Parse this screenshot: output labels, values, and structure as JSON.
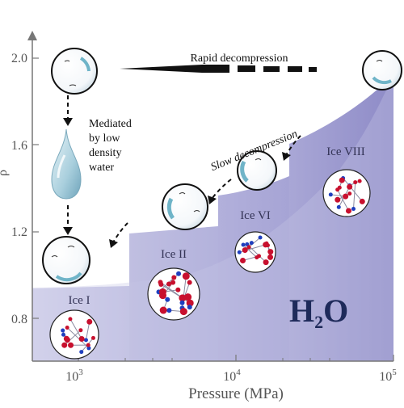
{
  "chart": {
    "x_axis": {
      "title": "Pressure (MPa)",
      "tick_labels": [
        {
          "base": "10",
          "exp": "3"
        },
        {
          "base": "10",
          "exp": "4"
        },
        {
          "base": "10",
          "exp": "5"
        }
      ]
    },
    "y_axis": {
      "title_fragment": "ρ",
      "tick_labels": [
        "0.8",
        "1.2",
        "1.6",
        "2.0"
      ]
    },
    "phases": [
      {
        "label": "Ice I"
      },
      {
        "label": "Ice II"
      },
      {
        "label": "Ice VI"
      },
      {
        "label": "Ice VIII"
      }
    ],
    "annotations": {
      "rapid": "Rapid decompression",
      "slow": "Slow decompression",
      "mediated_lines": [
        "Mediated",
        "by low",
        "density",
        "water"
      ]
    },
    "formula": {
      "main": "H",
      "sub": "2",
      "tail": "O"
    }
  },
  "colors": {
    "phase_fill": "#a9a8d6",
    "phase_fill_dark": "#8b88c6",
    "axis": "#777777",
    "atom_red": "#c8102e",
    "atom_blue": "#1f3fbf",
    "droplet": "#9fc9da"
  }
}
